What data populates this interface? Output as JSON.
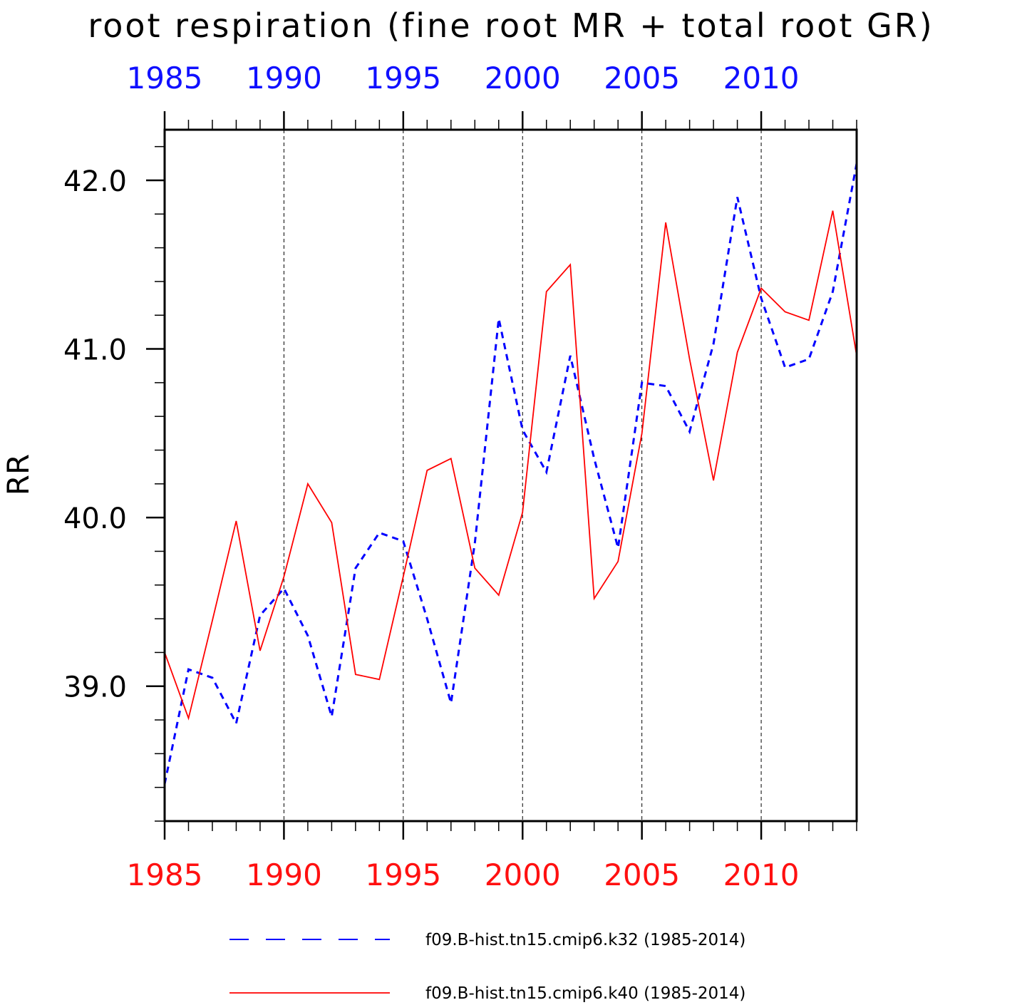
{
  "chart_data": {
    "type": "line",
    "title": "root respiration (fine root MR + total root GR)",
    "ylabel": "RR",
    "xlabel": "",
    "xlim": [
      1985,
      2014
    ],
    "ylim": [
      38.2,
      42.3
    ],
    "x_ticks": [
      1985,
      1990,
      1995,
      2000,
      2005,
      2010
    ],
    "x_tick_labels": [
      "1985",
      "1990",
      "1995",
      "2000",
      "2005",
      "2010"
    ],
    "y_ticks": [
      39.0,
      40.0,
      41.0,
      42.0
    ],
    "y_tick_labels": [
      "39.0",
      "40.0",
      "41.0",
      "42.0"
    ],
    "grid": "vertical dashed at major x ticks",
    "legend_position": "bottom",
    "x": [
      1985,
      1986,
      1987,
      1988,
      1989,
      1990,
      1991,
      1992,
      1993,
      1994,
      1995,
      1996,
      1997,
      1998,
      1999,
      2000,
      2001,
      2002,
      2003,
      2004,
      2005,
      2006,
      2007,
      2008,
      2009,
      2010,
      2011,
      2012,
      2013,
      2014
    ],
    "series": [
      {
        "name": "f09.B-hist.tn15.cmip6.k32 (1985-2014)",
        "color": "#0000ff",
        "style": "dashed",
        "values": [
          38.42,
          39.1,
          39.05,
          38.78,
          39.42,
          39.58,
          39.3,
          38.82,
          39.7,
          39.91,
          39.86,
          39.4,
          38.9,
          39.85,
          41.18,
          40.52,
          40.27,
          40.96,
          40.35,
          39.82,
          40.8,
          40.78,
          40.51,
          41.03,
          41.9,
          41.3,
          40.89,
          40.94,
          41.34,
          42.1
        ]
      },
      {
        "name": "f09.B-hist.tn15.cmip6.k40 (1985-2014)",
        "color": "#ff0000",
        "style": "solid",
        "values": [
          39.2,
          38.81,
          39.39,
          39.98,
          39.21,
          39.65,
          40.2,
          39.97,
          39.07,
          39.04,
          39.65,
          40.28,
          40.35,
          39.7,
          39.54,
          40.03,
          41.34,
          41.5,
          39.52,
          39.74,
          40.5,
          41.75,
          40.94,
          40.22,
          40.98,
          41.36,
          41.22,
          41.17,
          41.82,
          40.96
        ]
      }
    ]
  }
}
